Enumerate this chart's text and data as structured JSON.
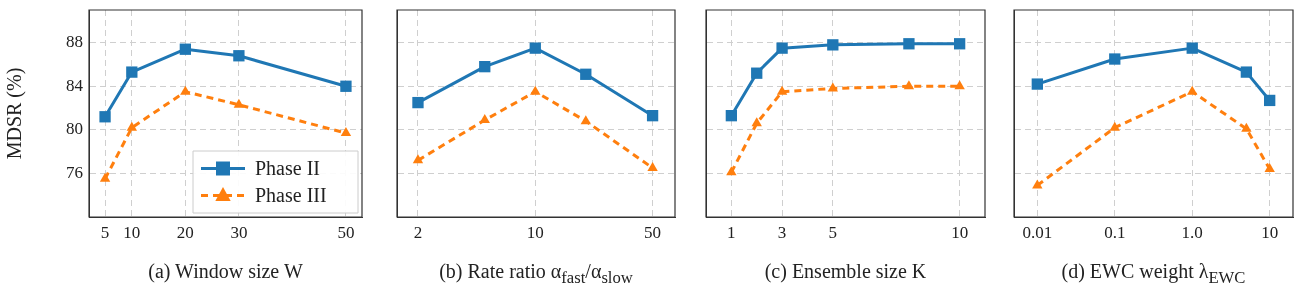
{
  "chart_data": [
    {
      "type": "line",
      "xlabel": "(a) Window size W",
      "ylabel": "MDSR (%)",
      "x": [
        5,
        10,
        20,
        30,
        50
      ],
      "series": [
        {
          "name": "Phase II",
          "color": "#1f77b4",
          "marker": "square",
          "line_style": "solid",
          "values": [
            81.2,
            85.3,
            87.4,
            86.8,
            84.0
          ]
        },
        {
          "name": "Phase III",
          "color": "#ff7f0e",
          "marker": "triangle",
          "line_style": "dashed",
          "values": [
            75.5,
            80.2,
            83.5,
            82.3,
            79.7
          ]
        }
      ],
      "xlim": [
        2,
        53
      ],
      "xticks": [
        5,
        10,
        20,
        30,
        50
      ],
      "ylim": [
        72,
        91
      ],
      "yticks": [
        76,
        80,
        84,
        88
      ],
      "grid": true,
      "legend": "bottom right"
    },
    {
      "type": "line",
      "xlabel": "(b) Rate ratio α$_{fast}$/α$_{slow}$",
      "x": [
        2,
        5,
        10,
        20,
        50
      ],
      "series": [
        {
          "color": "#1f77b4",
          "marker": "square",
          "line_style": "solid",
          "values": [
            82.5,
            85.8,
            87.5,
            85.1,
            81.3
          ]
        },
        {
          "color": "#ff7f0e",
          "marker": "triangle",
          "line_style": "dashed",
          "values": [
            77.2,
            80.9,
            83.5,
            80.8,
            76.5
          ]
        }
      ],
      "xlim": [
        1.5,
        68
      ],
      "xticks": [
        2,
        10,
        50
      ],
      "ylim": [
        72,
        91
      ],
      "yticks": [
        76,
        80,
        84,
        88
      ],
      "grid": true,
      "log": "x",
      "tick_labels": "x"
    },
    {
      "type": "line",
      "xlabel": "(c) Ensemble size K",
      "x": [
        1,
        2,
        3,
        5,
        8,
        10
      ],
      "series": [
        {
          "color": "#1f77b4",
          "marker": "square",
          "line_style": "solid",
          "values": [
            81.3,
            85.2,
            87.5,
            87.8,
            87.9,
            87.9
          ]
        },
        {
          "color": "#ff7f0e",
          "marker": "triangle",
          "line_style": "dashed",
          "values": [
            76.1,
            80.6,
            83.5,
            83.8,
            84.0,
            84.0
          ]
        }
      ],
      "xlim": [
        0,
        11
      ],
      "xticks": [
        1,
        3,
        5,
        10
      ],
      "ylim": [
        72,
        91
      ],
      "yticks": [
        76,
        80,
        84,
        88
      ],
      "grid": true,
      "tick_labels": "x"
    },
    {
      "type": "line",
      "xlabel": "(d) EWC weight λ$_{EWC}$",
      "x": [
        0.01,
        0.1,
        1,
        5,
        10
      ],
      "series": [
        {
          "color": "#1f77b4",
          "marker": "square",
          "line_style": "solid",
          "values": [
            84.2,
            86.5,
            87.5,
            85.3,
            82.7
          ]
        },
        {
          "color": "#ff7f0e",
          "marker": "triangle",
          "line_style": "dashed",
          "values": [
            74.9,
            80.2,
            83.5,
            80.1,
            76.4
          ]
        }
      ],
      "xlim": [
        0.005,
        20
      ],
      "xticks": [
        0.01,
        0.1,
        {
          "value": 1,
          "label": "1.0"
        },
        10
      ],
      "ylim": [
        72,
        91
      ],
      "yticks": [
        76,
        80,
        84,
        88
      ],
      "grid": true,
      "log": "x",
      "tick_labels": "x"
    }
  ]
}
